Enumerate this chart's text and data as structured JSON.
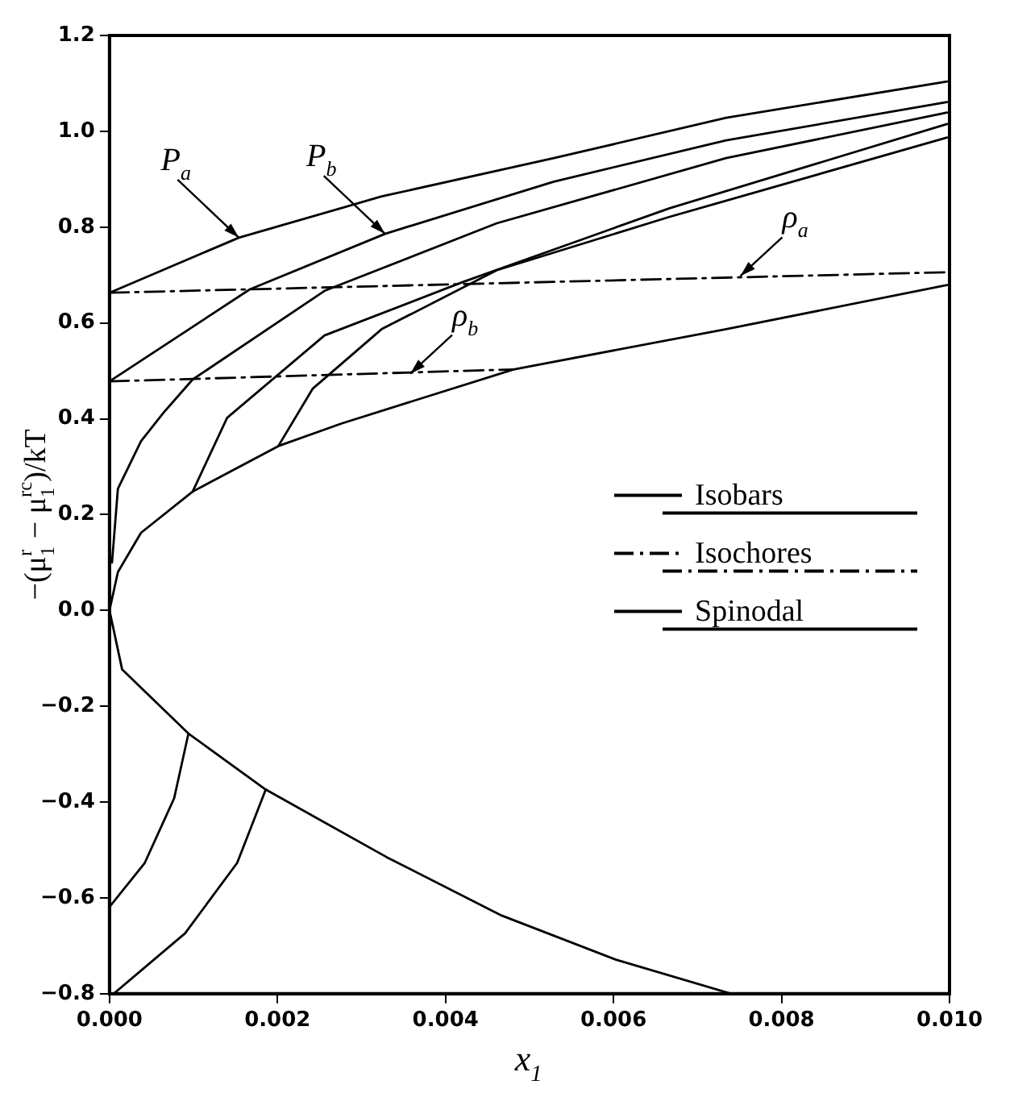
{
  "chart_data": {
    "type": "line",
    "xlabel": "x$_{1}$",
    "ylabel": "−(μ$_{1}$$^{r}$ − μ$_{1}$$^{rc}$)/kT",
    "xlim": [
      0,
      0.01
    ],
    "xticks": [
      {
        "value": 0,
        "label": "0.000"
      },
      {
        "value": 0.002,
        "label": "0.002"
      },
      {
        "value": 0.004,
        "label": "0.004"
      },
      {
        "value": 0.006,
        "label": "0.006"
      },
      {
        "value": 0.008,
        "label": "0.008"
      },
      {
        "value": 0.01,
        "label": "0.010"
      }
    ],
    "ylim": [
      -0.8,
      1.2
    ],
    "yticks": [
      {
        "value": -0.8,
        "label": "−0.8"
      },
      {
        "value": -0.6,
        "label": "−0.6"
      },
      {
        "value": -0.4,
        "label": "−0.4"
      },
      {
        "value": -0.2,
        "label": "−0.2"
      },
      {
        "value": 0,
        "label": "0.0"
      },
      {
        "value": 0.2,
        "label": "0.2"
      },
      {
        "value": 0.4,
        "label": "0.4"
      },
      {
        "value": 0.6,
        "label": "0.6"
      },
      {
        "value": 0.8,
        "label": "0.8"
      },
      {
        "value": 1.0,
        "label": "1.0"
      },
      {
        "value": 1.2,
        "label": "1.2"
      }
    ],
    "grid": false,
    "legend": "right",
    "marker": "none",
    "series": [
      {
        "name": "Isobars",
        "color": "#000000",
        "line_style": "solid",
        "x": [
          0,
          0.00154,
          0.00324,
          0.00529,
          0.00734,
          0.00997
        ],
        "values": [
          0.663,
          0.778,
          0.864,
          0.944,
          1.028,
          1.104
        ]
      },
      {
        "color": "#000000",
        "line_style": "solid",
        "x": [
          0,
          0.00167,
          0.00328,
          0.00529,
          0.00734,
          0.00997
        ],
        "values": [
          0.478,
          0.67,
          0.786,
          0.895,
          0.981,
          1.061
        ]
      },
      {
        "color": "#000000",
        "line_style": "solid",
        "x": [
          3e-05,
          0.0001,
          0.000375,
          0.00065,
          0.00099,
          0.00256,
          0.00461,
          0.00734,
          0.00997
        ],
        "values": [
          0.1,
          0.254,
          0.353,
          0.414,
          0.482,
          0.667,
          0.808,
          0.944,
          1.039
        ]
      },
      {
        "color": "#000000",
        "line_style": "solid",
        "x": [
          0.00099,
          0.0014,
          0.00256,
          0.0042,
          0.00666,
          0.00997
        ],
        "values": [
          0.248,
          0.402,
          0.574,
          0.685,
          0.839,
          1.015
        ]
      },
      {
        "color": "#000000",
        "line_style": "solid",
        "x": [
          0.00201,
          0.00242,
          0.00324,
          0.00461,
          0.00666,
          0.00997
        ],
        "values": [
          0.343,
          0.463,
          0.587,
          0.71,
          0.821,
          0.987
        ]
      },
      {
        "color": "#000000",
        "line_style": "solid",
        "x": [
          0,
          0.00042,
          0.00077,
          0.00094
        ],
        "values": [
          -0.619,
          -0.527,
          -0.392,
          -0.257
        ]
      },
      {
        "color": "#000000",
        "line_style": "solid",
        "x": [
          5e-05,
          0.0009,
          0.00152,
          0.00186
        ],
        "values": [
          -0.8,
          -0.674,
          -0.527,
          -0.374
        ]
      },
      {
        "name": "Isochores",
        "color": "#000000",
        "line_style": "dashed",
        "x": [
          0,
          0.01
        ],
        "values": [
          0.663,
          0.706
        ]
      },
      {
        "color": "#000000",
        "line_style": "dashed",
        "x": [
          0,
          0.00481
        ],
        "values": [
          0.478,
          0.503
        ]
      },
      {
        "name": "Spinodal",
        "color": "#000000",
        "line_style": "solid",
        "x": [
          0.0074,
          0.00603,
          0.00467,
          0.0033,
          0.00186,
          0.00094,
          0.00015,
          0,
          0.0001,
          0.000375,
          0.00099,
          0.00201,
          0.00276,
          0.00481,
          0.00734,
          0.00997
        ],
        "values": [
          -0.8,
          -0.729,
          -0.637,
          -0.515,
          -0.374,
          -0.257,
          -0.123,
          0,
          0.08,
          0.162,
          0.248,
          0.343,
          0.39,
          0.503,
          0.587,
          0.679
        ]
      }
    ],
    "annotations": [
      {
        "text": "P$_{a}$",
        "x": 0.00154,
        "y": 0.778
      },
      {
        "text": "P$_{b}$",
        "x": 0.00328,
        "y": 0.786
      },
      {
        "text": "ρ$_{a}$",
        "x": 0.00751,
        "y": 0.698
      },
      {
        "text": "ρ$_{b}$",
        "x": 0.00358,
        "y": 0.494
      }
    ]
  }
}
